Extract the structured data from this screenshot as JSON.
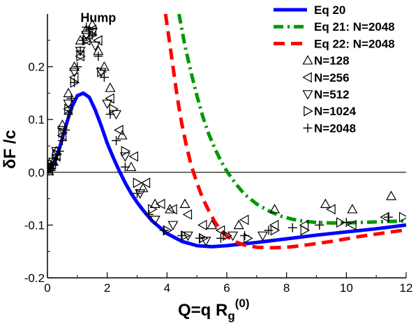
{
  "chart_data": {
    "type": "line",
    "xlabel": "Q=q R",
    "xlabel_sub": "g",
    "xlabel_sup": "(0)",
    "ylabel": "δF /c",
    "xlim": [
      0,
      12
    ],
    "ylim": [
      -0.2,
      0.3
    ],
    "xticks": [
      0,
      2,
      4,
      6,
      8,
      10,
      12
    ],
    "xtick_labels": [
      "0",
      "2",
      "4",
      "6",
      "8",
      "10",
      "12"
    ],
    "yticks": [
      -0.2,
      -0.1,
      0.0,
      0.1,
      0.2
    ],
    "ytick_labels": [
      "-0.2",
      "-0.1",
      "0.0",
      "0.1",
      "0.2"
    ],
    "zero_line": true,
    "grid": false,
    "legend_position": "top-right",
    "annotations": [
      {
        "text": "Hump",
        "x": 1.7,
        "y": 0.285
      }
    ],
    "series": [
      {
        "name": "Eq 20",
        "kind": "line",
        "color": "#0000ff",
        "style": "solid",
        "x": [
          0.0,
          0.2,
          0.4,
          0.6,
          0.8,
          1.0,
          1.2,
          1.4,
          1.6,
          1.8,
          2.0,
          2.2,
          2.4,
          2.6,
          2.8,
          3.0,
          3.2,
          3.5,
          4.0,
          4.5,
          5.0,
          5.5,
          6.0,
          6.5,
          7.0,
          8.0,
          9.0,
          10.0,
          11.0,
          12.0
        ],
        "y": [
          0.0,
          0.015,
          0.045,
          0.085,
          0.122,
          0.145,
          0.15,
          0.142,
          0.118,
          0.088,
          0.055,
          0.028,
          0.003,
          -0.02,
          -0.04,
          -0.057,
          -0.072,
          -0.092,
          -0.116,
          -0.131,
          -0.139,
          -0.141,
          -0.139,
          -0.136,
          -0.133,
          -0.126,
          -0.119,
          -0.113,
          -0.107,
          -0.1
        ]
      },
      {
        "name": "Eq 21: N=2048",
        "kind": "line",
        "color": "#009900",
        "style": "dashdot",
        "x": [
          4.4,
          4.6,
          4.8,
          5.0,
          5.2,
          5.4,
          5.6,
          5.8,
          6.0,
          6.3,
          6.6,
          7.0,
          7.4,
          7.8,
          8.2,
          8.6,
          9.0,
          9.5,
          10.0,
          10.5,
          11.0,
          11.5,
          12.0
        ],
        "y": [
          0.3,
          0.24,
          0.19,
          0.145,
          0.105,
          0.072,
          0.045,
          0.022,
          0.002,
          -0.022,
          -0.042,
          -0.06,
          -0.073,
          -0.083,
          -0.089,
          -0.093,
          -0.095,
          -0.096,
          -0.096,
          -0.095,
          -0.094,
          -0.093,
          -0.092
        ]
      },
      {
        "name": "Eq 22: N=2048",
        "kind": "line",
        "color": "#ff0000",
        "style": "dashed",
        "x": [
          3.95,
          4.05,
          4.2,
          4.35,
          4.5,
          4.65,
          4.8,
          5.0,
          5.2,
          5.4,
          5.6,
          5.8,
          6.0,
          6.3,
          6.6,
          7.0,
          7.5,
          8.0,
          8.5,
          9.0,
          9.5,
          10.0,
          10.5,
          11.0,
          11.5,
          12.0
        ],
        "y": [
          0.3,
          0.26,
          0.2,
          0.14,
          0.09,
          0.05,
          0.015,
          -0.02,
          -0.05,
          -0.073,
          -0.094,
          -0.11,
          -0.121,
          -0.132,
          -0.138,
          -0.142,
          -0.143,
          -0.142,
          -0.139,
          -0.135,
          -0.131,
          -0.126,
          -0.121,
          -0.117,
          -0.113,
          -0.109
        ]
      },
      {
        "name": "N=128",
        "kind": "marker",
        "marker": "triangle-up",
        "x": [
          0.05,
          0.1,
          0.2,
          0.3,
          0.5,
          0.7,
          0.9,
          1.1,
          1.3,
          1.5,
          1.7,
          1.9,
          2.1,
          2.5,
          2.8,
          3.2,
          3.6,
          4.1,
          4.6,
          5.5,
          6.4,
          7.6,
          9.3,
          10.2,
          11.5
        ],
        "y": [
          0.002,
          0.01,
          0.02,
          0.04,
          0.09,
          0.15,
          0.2,
          0.25,
          0.27,
          0.28,
          0.23,
          0.2,
          0.16,
          0.07,
          0.01,
          -0.03,
          -0.06,
          -0.07,
          -0.06,
          -0.1,
          -0.1,
          -0.07,
          -0.06,
          -0.07,
          -0.045
        ]
      },
      {
        "name": "N=256",
        "kind": "marker",
        "marker": "triangle-left",
        "x": [
          0.05,
          0.15,
          0.3,
          0.5,
          0.7,
          0.9,
          1.1,
          1.3,
          1.5,
          1.7,
          2.1,
          2.4,
          2.9,
          3.3,
          3.8,
          4.2,
          4.7,
          5.2,
          5.8,
          6.6,
          7.6,
          8.6,
          9.5,
          10.2,
          11.3
        ],
        "y": [
          0.005,
          0.015,
          0.03,
          0.07,
          0.12,
          0.18,
          0.22,
          0.25,
          0.27,
          0.25,
          0.14,
          0.08,
          0.03,
          -0.02,
          -0.06,
          -0.07,
          -0.08,
          -0.1,
          -0.11,
          -0.09,
          -0.1,
          -0.1,
          -0.07,
          -0.1,
          -0.085
        ]
      },
      {
        "name": "N=512",
        "kind": "marker",
        "marker": "triangle-down",
        "x": [
          0.1,
          0.2,
          0.3,
          0.5,
          0.7,
          0.9,
          1.1,
          1.3,
          1.5,
          1.6,
          1.8,
          2.0,
          2.3,
          2.6,
          3.1,
          3.6,
          4.2,
          4.7,
          5.3,
          6.2,
          7.2
        ],
        "y": [
          0.01,
          0.02,
          0.04,
          0.08,
          0.13,
          0.19,
          0.23,
          0.26,
          0.265,
          0.24,
          0.19,
          0.13,
          0.11,
          0.03,
          -0.04,
          -0.09,
          -0.1,
          -0.12,
          -0.13,
          -0.12,
          -0.12
        ]
      },
      {
        "name": "N=1024",
        "kind": "marker",
        "marker": "triangle-right",
        "x": [
          0.05,
          0.15,
          0.3,
          0.5,
          0.7,
          0.9,
          1.1,
          1.3,
          1.5,
          1.8,
          2.2,
          2.6,
          3.0,
          3.5,
          4.0,
          4.6,
          5.2,
          6.0,
          6.7,
          7.6,
          8.6,
          9.8,
          11.9
        ],
        "y": [
          0.005,
          0.015,
          0.035,
          0.075,
          0.12,
          0.17,
          0.22,
          0.25,
          0.26,
          0.19,
          0.12,
          0.04,
          -0.02,
          -0.07,
          -0.11,
          -0.12,
          -0.125,
          -0.12,
          -0.125,
          -0.11,
          -0.11,
          -0.095,
          -0.085
        ]
      },
      {
        "name": "N=2048",
        "kind": "marker",
        "marker": "plus",
        "x": [
          0.05,
          0.1,
          0.2,
          0.3,
          0.4,
          0.5,
          0.6,
          0.7,
          0.8,
          0.9,
          1.0,
          1.1,
          1.2,
          1.3,
          1.4,
          1.5,
          1.7,
          1.9,
          2.1,
          2.3,
          2.6,
          3.0,
          3.4,
          3.9,
          4.5,
          5.1,
          5.8,
          6.6,
          7.4,
          8.2,
          9.1,
          10.0,
          11.4
        ],
        "y": [
          0.003,
          0.008,
          0.015,
          0.025,
          0.04,
          0.06,
          0.08,
          0.11,
          0.14,
          0.17,
          0.2,
          0.23,
          0.25,
          0.275,
          0.27,
          0.26,
          0.22,
          0.18,
          0.11,
          0.06,
          0.01,
          -0.04,
          -0.08,
          -0.11,
          -0.12,
          -0.125,
          -0.125,
          -0.12,
          -0.11,
          -0.105,
          -0.1,
          -0.095,
          -0.085
        ]
      }
    ]
  }
}
